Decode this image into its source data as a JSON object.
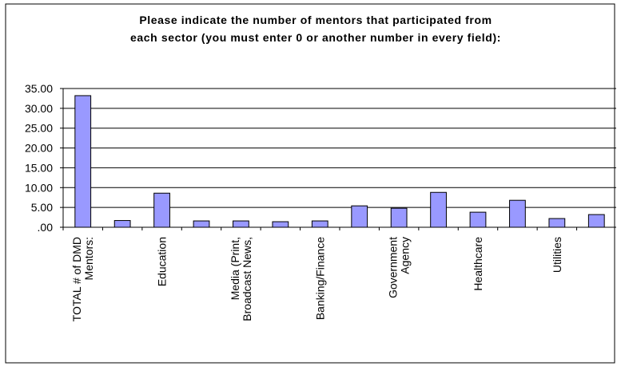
{
  "chart_data": {
    "type": "bar",
    "title": "Please indicate the number of mentors that participated from\neach sector (you must enter 0 or another number in every field):",
    "categories": [
      "TOTAL # of DMD\nMentors:",
      null,
      "Education",
      null,
      "Media (Print,\nBroadcast News,",
      null,
      "Banking/Finance",
      null,
      "Government\nAgency",
      null,
      "Healthcare",
      null,
      "Utilities",
      null
    ],
    "values": [
      33.2,
      1.7,
      8.6,
      1.6,
      1.6,
      1.4,
      1.6,
      5.4,
      4.8,
      8.8,
      3.8,
      6.8,
      2.2,
      3.2
    ],
    "color": "#9999ff",
    "ylim": [
      0,
      35
    ],
    "yticks": [
      {
        "value": 0,
        "label": ".00"
      },
      {
        "value": 5,
        "label": "5.00"
      },
      {
        "value": 10,
        "label": "10.00"
      },
      {
        "value": 15,
        "label": "15.00"
      },
      {
        "value": 20,
        "label": "20.00"
      },
      {
        "value": 25,
        "label": "25.00"
      },
      {
        "value": 30,
        "label": "30.00"
      },
      {
        "value": 35,
        "label": "35.00"
      }
    ],
    "grid": true
  }
}
